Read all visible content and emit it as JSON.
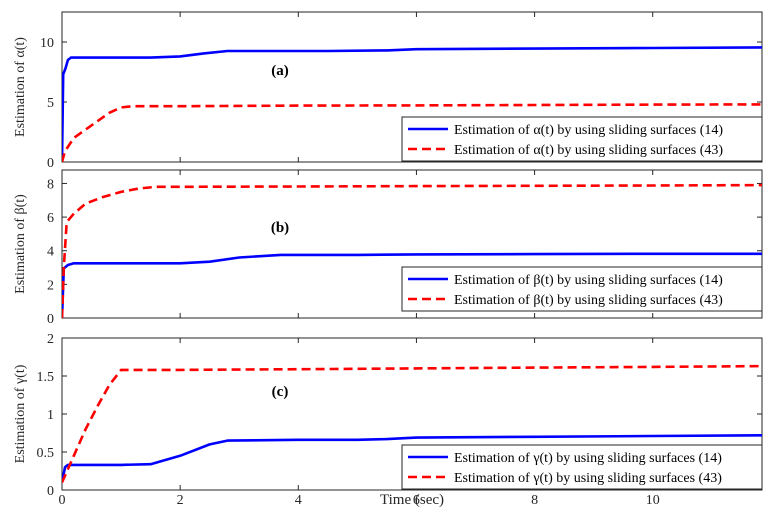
{
  "chart_data": [
    {
      "type": "line",
      "panel_label": "(a)",
      "ylabel": "Estimation of  α(t)",
      "xlim": [
        0,
        11.85
      ],
      "ylim": [
        0,
        12.5
      ],
      "xticks": [
        0,
        2,
        4,
        6,
        8,
        10
      ],
      "yticks": [
        0,
        5,
        10
      ],
      "legend_position": "bottom-right",
      "series": [
        {
          "name": "Estimation of α(t) by using sliding surfaces (14)",
          "color": "#0000ff",
          "style": "solid",
          "x": [
            0,
            0.02,
            0.06,
            0.1,
            0.15,
            0.3,
            1.0,
            1.5,
            2.0,
            2.4,
            2.8,
            3.5,
            4.5,
            5.5,
            6.0,
            8.0,
            10.0,
            11.85
          ],
          "y": [
            0,
            7.3,
            7.8,
            8.5,
            8.7,
            8.7,
            8.7,
            8.7,
            8.8,
            9.05,
            9.25,
            9.25,
            9.25,
            9.3,
            9.4,
            9.45,
            9.5,
            9.55
          ]
        },
        {
          "name": "Estimation of α(t) by using sliding surfaces (43)",
          "color": "#ff0000",
          "style": "dashed",
          "x": [
            0,
            0.05,
            0.2,
            0.4,
            0.6,
            0.8,
            1.0,
            1.2,
            2.0,
            4.0,
            6.0,
            8.0,
            10.0,
            11.85
          ],
          "y": [
            0,
            0.9,
            2.0,
            2.7,
            3.4,
            4.1,
            4.55,
            4.65,
            4.65,
            4.7,
            4.72,
            4.75,
            4.78,
            4.8
          ]
        }
      ]
    },
    {
      "type": "line",
      "panel_label": "(b)",
      "ylabel": "Estimation of  β(t)",
      "xlim": [
        0,
        11.85
      ],
      "ylim": [
        0,
        8.8
      ],
      "xticks": [
        0,
        2,
        4,
        6,
        8,
        10
      ],
      "yticks": [
        0,
        2,
        4,
        6,
        8
      ],
      "legend_position": "bottom-right",
      "series": [
        {
          "name": "Estimation of β(t) by using sliding surfaces  (14)",
          "color": "#0000ff",
          "style": "solid",
          "x": [
            0,
            0.03,
            0.1,
            0.2,
            1.0,
            2.0,
            2.5,
            3.0,
            3.7,
            5.0,
            6.0,
            8.0,
            10.0,
            11.85
          ],
          "y": [
            0,
            2.95,
            3.15,
            3.25,
            3.25,
            3.25,
            3.35,
            3.6,
            3.75,
            3.75,
            3.78,
            3.8,
            3.82,
            3.82
          ]
        },
        {
          "name": "Estimation of β(t) by using sliding surfaces  (43)",
          "color": "#ff0000",
          "style": "dashed",
          "x": [
            0,
            0.03,
            0.08,
            0.2,
            0.4,
            0.7,
            1.0,
            1.3,
            1.6,
            2.0,
            4.0,
            6.0,
            8.0,
            10.0,
            11.85
          ],
          "y": [
            0,
            3.0,
            5.7,
            6.2,
            6.8,
            7.2,
            7.5,
            7.7,
            7.8,
            7.8,
            7.82,
            7.84,
            7.86,
            7.88,
            7.9
          ]
        }
      ]
    },
    {
      "type": "line",
      "panel_label": "(c)",
      "ylabel": "Estimation of  γ(t)",
      "xlabel": "Time (sec)",
      "xlim": [
        0,
        11.85
      ],
      "ylim": [
        0,
        2
      ],
      "xticks": [
        0,
        2,
        4,
        6,
        8,
        10
      ],
      "yticks": [
        0,
        0.5,
        1,
        1.5,
        2
      ],
      "legend_position": "bottom-right",
      "series": [
        {
          "name": "Estimation of γ(t) by using sliding surfaces  (14)",
          "color": "#0000ff",
          "style": "solid",
          "x": [
            0,
            0.05,
            0.1,
            0.3,
            1.0,
            1.5,
            2.0,
            2.5,
            2.8,
            4.0,
            5.0,
            5.5,
            6.0,
            8.0,
            10.0,
            11.85
          ],
          "y": [
            0.1,
            0.3,
            0.33,
            0.33,
            0.33,
            0.34,
            0.45,
            0.6,
            0.65,
            0.66,
            0.66,
            0.67,
            0.69,
            0.7,
            0.71,
            0.72
          ]
        },
        {
          "name": "Estimation of γ(t) by using sliding surfaces  (43)",
          "color": "#ff0000",
          "style": "dashed",
          "x": [
            0,
            0.2,
            0.4,
            0.6,
            0.8,
            1.0,
            1.3,
            2.0,
            4.0,
            6.0,
            8.0,
            10.0,
            11.85
          ],
          "y": [
            0.1,
            0.45,
            0.8,
            1.1,
            1.38,
            1.58,
            1.58,
            1.58,
            1.59,
            1.6,
            1.61,
            1.62,
            1.63
          ]
        }
      ]
    }
  ]
}
